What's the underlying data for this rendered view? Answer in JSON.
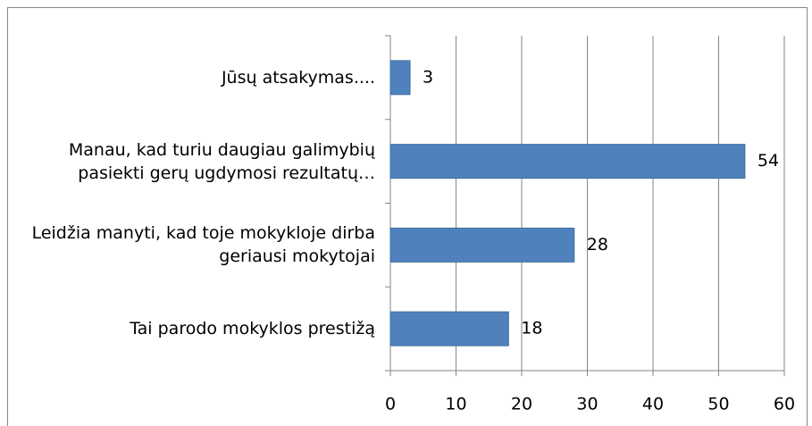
{
  "chart_data": {
    "type": "bar",
    "orientation": "horizontal",
    "categories": [
      "Jūsų atsakymas....",
      "Manau, kad turiu daugiau galimybių pasiekti gerų ugdymosi rezultatų…",
      "Leidžia manyti, kad toje mokykloje dirba geriausi mokytojai",
      "Tai parodo mokyklos prestižą"
    ],
    "values": [
      3,
      54,
      28,
      18
    ],
    "color": "#4f81bd",
    "xlim": [
      0,
      60
    ],
    "xticks": [
      0,
      10,
      20,
      30,
      40,
      50,
      60
    ],
    "grid": true
  }
}
